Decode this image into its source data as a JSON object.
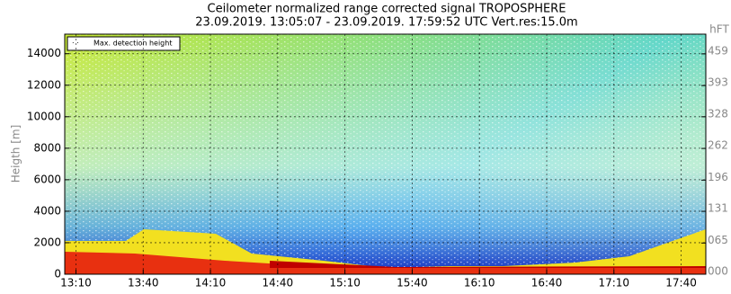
{
  "chart_data": {
    "type": "heatmap",
    "title": "Ceilometer normalized range corrected signal TROPOSPHERE",
    "subtitle": "23.09.2019. 13:05:07 - 23.09.2019. 17:59:52 UTC  Vert.res:15.0m",
    "y_label": "Heigth [m]",
    "y2_label": "hFT",
    "legend": "Max. detection height",
    "xlim": [
      785,
      1071
    ],
    "xticks": [
      {
        "value": 790,
        "label": "13:10"
      },
      {
        "value": 820,
        "label": "13:40"
      },
      {
        "value": 850,
        "label": "14:10"
      },
      {
        "value": 880,
        "label": "14:40"
      },
      {
        "value": 910,
        "label": "15:10"
      },
      {
        "value": 940,
        "label": "15:40"
      },
      {
        "value": 970,
        "label": "16:10"
      },
      {
        "value": 1000,
        "label": "16:40"
      },
      {
        "value": 1030,
        "label": "17:10"
      },
      {
        "value": 1060,
        "label": "17:40"
      }
    ],
    "ylim": [
      0,
      15240
    ],
    "yticks": [
      0,
      2000,
      4000,
      6000,
      8000,
      10000,
      12000,
      14000
    ],
    "y2lim": [
      0,
      500
    ],
    "y2ticks": [
      {
        "value": 0,
        "label": "000"
      },
      {
        "value": 65,
        "label": "065"
      },
      131,
      196,
      262,
      328,
      393,
      459
    ],
    "grid": true
  }
}
